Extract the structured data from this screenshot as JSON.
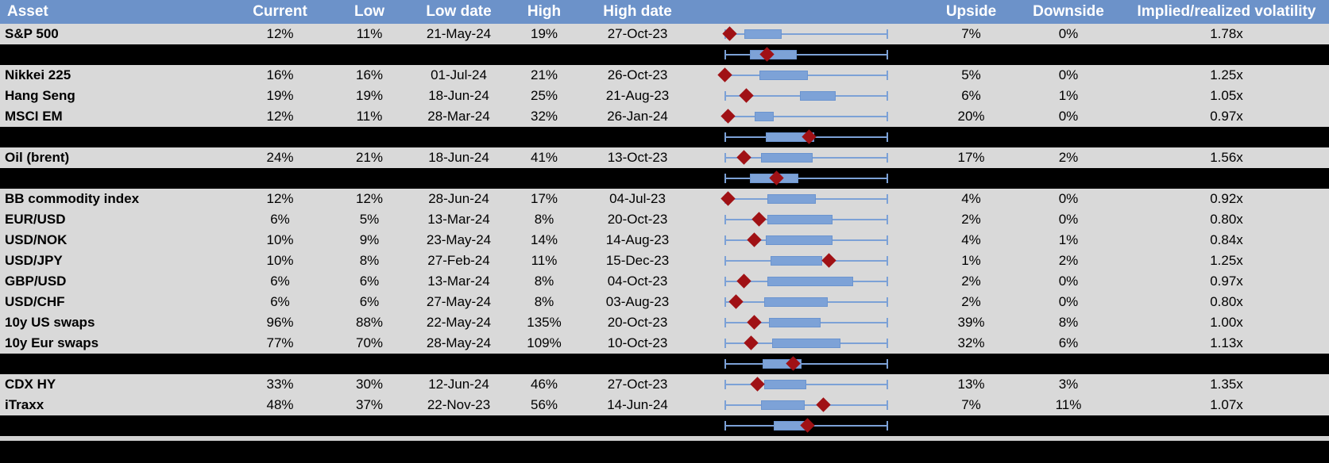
{
  "colors": {
    "header_bg": "#6C92C9",
    "header_text": "#FFFFFF",
    "row_bg": "#D9D9D9",
    "separator_bg": "#000000",
    "box_fill": "#7DA2D7",
    "box_border": "#6B94CF",
    "whisker_blue": "#7CA1D6",
    "diamond_red": "#A01115"
  },
  "chart_data": {
    "type": "table",
    "title": "Implied volatility monitor with embedded box-and-whisker plots (whisker spans 1y low to high, red diamond marks current level)",
    "columns": [
      "Asset",
      "Current",
      "Low",
      "Low date",
      "High",
      "High date",
      "",
      "Upside",
      "Downside",
      "Implied/realized volatility"
    ],
    "rows": [
      {
        "type": "data",
        "asset": "S&P 500",
        "current": "12%",
        "low": "11%",
        "low_date": "21-May-24",
        "high": "19%",
        "high_date": "27-Oct-23",
        "upside": "7%",
        "downside": "0%",
        "implied_realized": "1.78x",
        "boxplot": {
          "whisker_min_pct": 0,
          "whisker_max_pct": 100,
          "box_low_pct": 12,
          "box_high_pct": 35,
          "diamond_pct": 3
        }
      },
      {
        "type": "separator",
        "boxplot": {
          "whisker_min_pct": 0,
          "whisker_max_pct": 100,
          "box_low_pct": 15,
          "box_high_pct": 44,
          "diamond_pct": 26
        }
      },
      {
        "type": "data",
        "asset": "Nikkei 225",
        "current": "16%",
        "low": "16%",
        "low_date": "01-Jul-24",
        "high": "21%",
        "high_date": "26-Oct-23",
        "upside": "5%",
        "downside": "0%",
        "implied_realized": "1.25x",
        "boxplot": {
          "whisker_min_pct": 0,
          "whisker_max_pct": 100,
          "box_low_pct": 21,
          "box_high_pct": 51,
          "diamond_pct": 0
        }
      },
      {
        "type": "data",
        "asset": "Hang Seng",
        "current": "19%",
        "low": "19%",
        "low_date": "18-Jun-24",
        "high": "25%",
        "high_date": "21-Aug-23",
        "upside": "6%",
        "downside": "1%",
        "implied_realized": "1.05x",
        "boxplot": {
          "whisker_min_pct": 0,
          "whisker_max_pct": 100,
          "box_low_pct": 46,
          "box_high_pct": 68,
          "diamond_pct": 13
        }
      },
      {
        "type": "data",
        "asset": "MSCI EM",
        "current": "12%",
        "low": "11%",
        "low_date": "28-Mar-24",
        "high": "32%",
        "high_date": "26-Jan-24",
        "upside": "20%",
        "downside": "0%",
        "implied_realized": "0.97x",
        "boxplot": {
          "whisker_min_pct": 0,
          "whisker_max_pct": 100,
          "box_low_pct": 18,
          "box_high_pct": 30,
          "diamond_pct": 2
        }
      },
      {
        "type": "separator",
        "boxplot": {
          "whisker_min_pct": 0,
          "whisker_max_pct": 100,
          "box_low_pct": 25,
          "box_high_pct": 55,
          "diamond_pct": 52
        }
      },
      {
        "type": "data",
        "asset": "Oil (brent)",
        "current": "24%",
        "low": "21%",
        "low_date": "18-Jun-24",
        "high": "41%",
        "high_date": "13-Oct-23",
        "upside": "17%",
        "downside": "2%",
        "implied_realized": "1.56x",
        "boxplot": {
          "whisker_min_pct": 0,
          "whisker_max_pct": 100,
          "box_low_pct": 22,
          "box_high_pct": 54,
          "diamond_pct": 12
        }
      },
      {
        "type": "separator",
        "boxplot": {
          "whisker_min_pct": 0,
          "whisker_max_pct": 100,
          "box_low_pct": 15,
          "box_high_pct": 45,
          "diamond_pct": 32
        }
      },
      {
        "type": "data",
        "asset": "BB commodity index",
        "current": "12%",
        "low": "12%",
        "low_date": "28-Jun-24",
        "high": "17%",
        "high_date": "04-Jul-23",
        "upside": "4%",
        "downside": "0%",
        "implied_realized": "0.92x",
        "boxplot": {
          "whisker_min_pct": 0,
          "whisker_max_pct": 100,
          "box_low_pct": 26,
          "box_high_pct": 56,
          "diamond_pct": 2
        }
      },
      {
        "type": "data",
        "asset": "EUR/USD",
        "current": "6%",
        "low": "5%",
        "low_date": "13-Mar-24",
        "high": "8%",
        "high_date": "20-Oct-23",
        "upside": "2%",
        "downside": "0%",
        "implied_realized": "0.80x",
        "boxplot": {
          "whisker_min_pct": 0,
          "whisker_max_pct": 100,
          "box_low_pct": 26,
          "box_high_pct": 66,
          "diamond_pct": 21
        }
      },
      {
        "type": "data",
        "asset": "USD/NOK",
        "current": "10%",
        "low": "9%",
        "low_date": "23-May-24",
        "high": "14%",
        "high_date": "14-Aug-23",
        "upside": "4%",
        "downside": "1%",
        "implied_realized": "0.84x",
        "boxplot": {
          "whisker_min_pct": 0,
          "whisker_max_pct": 100,
          "box_low_pct": 25,
          "box_high_pct": 66,
          "diamond_pct": 18
        }
      },
      {
        "type": "data",
        "asset": "USD/JPY",
        "current": "10%",
        "low": "8%",
        "low_date": "27-Feb-24",
        "high": "11%",
        "high_date": "15-Dec-23",
        "upside": "1%",
        "downside": "2%",
        "implied_realized": "1.25x",
        "boxplot": {
          "whisker_min_pct": 0,
          "whisker_max_pct": 100,
          "box_low_pct": 28,
          "box_high_pct": 60,
          "diamond_pct": 64
        }
      },
      {
        "type": "data",
        "asset": "GBP/USD",
        "current": "6%",
        "low": "6%",
        "low_date": "13-Mar-24",
        "high": "8%",
        "high_date": "04-Oct-23",
        "upside": "2%",
        "downside": "0%",
        "implied_realized": "0.97x",
        "boxplot": {
          "whisker_min_pct": 0,
          "whisker_max_pct": 100,
          "box_low_pct": 26,
          "box_high_pct": 79,
          "diamond_pct": 12
        }
      },
      {
        "type": "data",
        "asset": "USD/CHF",
        "current": "6%",
        "low": "6%",
        "low_date": "27-May-24",
        "high": "8%",
        "high_date": "03-Aug-23",
        "upside": "2%",
        "downside": "0%",
        "implied_realized": "0.80x",
        "boxplot": {
          "whisker_min_pct": 0,
          "whisker_max_pct": 100,
          "box_low_pct": 24,
          "box_high_pct": 63,
          "diamond_pct": 7
        }
      },
      {
        "type": "data",
        "asset": "10y US swaps",
        "current": "96%",
        "low": "88%",
        "low_date": "22-May-24",
        "high": "135%",
        "high_date": "20-Oct-23",
        "upside": "39%",
        "downside": "8%",
        "implied_realized": "1.00x",
        "boxplot": {
          "whisker_min_pct": 0,
          "whisker_max_pct": 100,
          "box_low_pct": 27,
          "box_high_pct": 59,
          "diamond_pct": 18
        }
      },
      {
        "type": "data",
        "asset": "10y Eur swaps",
        "current": "77%",
        "low": "70%",
        "low_date": "28-May-24",
        "high": "109%",
        "high_date": "10-Oct-23",
        "upside": "32%",
        "downside": "6%",
        "implied_realized": "1.13x",
        "boxplot": {
          "whisker_min_pct": 0,
          "whisker_max_pct": 100,
          "box_low_pct": 29,
          "box_high_pct": 71,
          "diamond_pct": 16
        }
      },
      {
        "type": "separator",
        "boxplot": {
          "whisker_min_pct": 0,
          "whisker_max_pct": 100,
          "box_low_pct": 23,
          "box_high_pct": 47,
          "diamond_pct": 42
        }
      },
      {
        "type": "data",
        "asset": "CDX HY",
        "current": "33%",
        "low": "30%",
        "low_date": "12-Jun-24",
        "high": "46%",
        "high_date": "27-Oct-23",
        "upside": "13%",
        "downside": "3%",
        "implied_realized": "1.35x",
        "boxplot": {
          "whisker_min_pct": 0,
          "whisker_max_pct": 100,
          "box_low_pct": 24,
          "box_high_pct": 50,
          "diamond_pct": 20
        }
      },
      {
        "type": "data",
        "asset": "iTraxx",
        "current": "48%",
        "low": "37%",
        "low_date": "22-Nov-23",
        "high": "56%",
        "high_date": "14-Jun-24",
        "upside": "7%",
        "downside": "11%",
        "implied_realized": "1.07x",
        "boxplot": {
          "whisker_min_pct": 0,
          "whisker_max_pct": 100,
          "box_low_pct": 22,
          "box_high_pct": 49,
          "diamond_pct": 61
        }
      },
      {
        "type": "separator",
        "boxplot": {
          "whisker_min_pct": 0,
          "whisker_max_pct": 100,
          "box_low_pct": 30,
          "box_high_pct": 51,
          "diamond_pct": 51
        }
      },
      {
        "type": "spacer"
      },
      {
        "type": "footer"
      }
    ]
  }
}
